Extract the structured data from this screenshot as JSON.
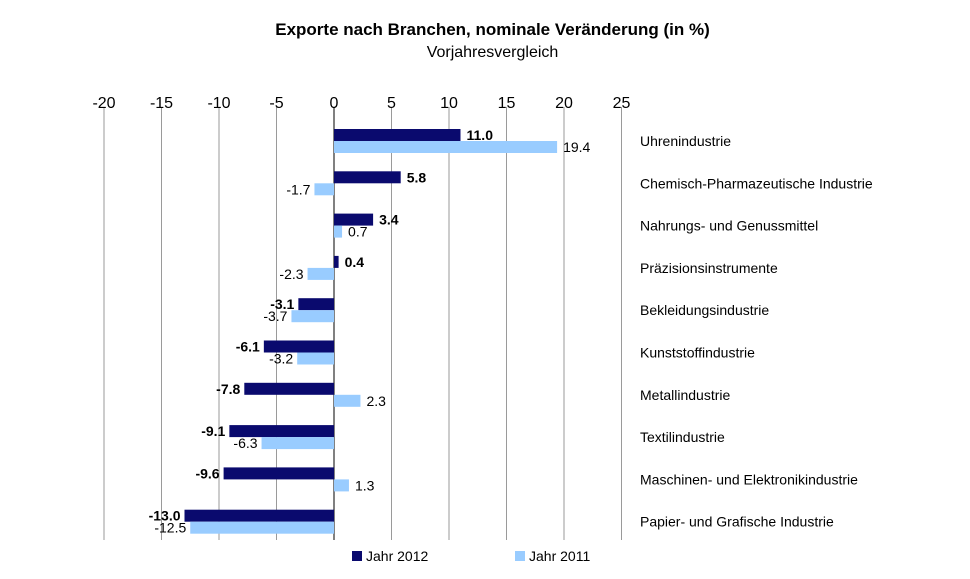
{
  "chart_data": {
    "type": "bar",
    "orientation": "horizontal",
    "title": "Exporte nach Branchen, nominale Veränderung (in %)",
    "subtitle": "Vorjahresvergleich",
    "categories": [
      "Uhrenindustrie",
      "Chemisch-Pharmazeutische Industrie",
      "Nahrungs- und Genussmittel",
      "Präzisionsinstrumente",
      "Bekleidungsindustrie",
      "Kunststoffindustrie",
      "Metallindustrie",
      "Textilindustrie",
      "Maschinen- und Elektronikindustrie",
      "Papier- und Grafische Industrie"
    ],
    "series": [
      {
        "name": "Jahr 2012",
        "color": "#0a0a6e",
        "values": [
          11.0,
          5.8,
          3.4,
          0.4,
          -3.1,
          -6.1,
          -7.8,
          -9.1,
          -9.6,
          -13.0
        ]
      },
      {
        "name": "Jahr 2011",
        "color": "#99ccff",
        "values": [
          19.4,
          -1.7,
          0.7,
          -2.3,
          -3.7,
          -3.2,
          2.3,
          -6.3,
          1.3,
          -12.5
        ]
      }
    ],
    "xlim": [
      -20,
      25
    ],
    "xticks": [
      "-20",
      "-15",
      "-10",
      "-5",
      "0",
      "5",
      "10",
      "15",
      "20",
      "25"
    ],
    "grid": true,
    "legend_position": "bottom"
  }
}
